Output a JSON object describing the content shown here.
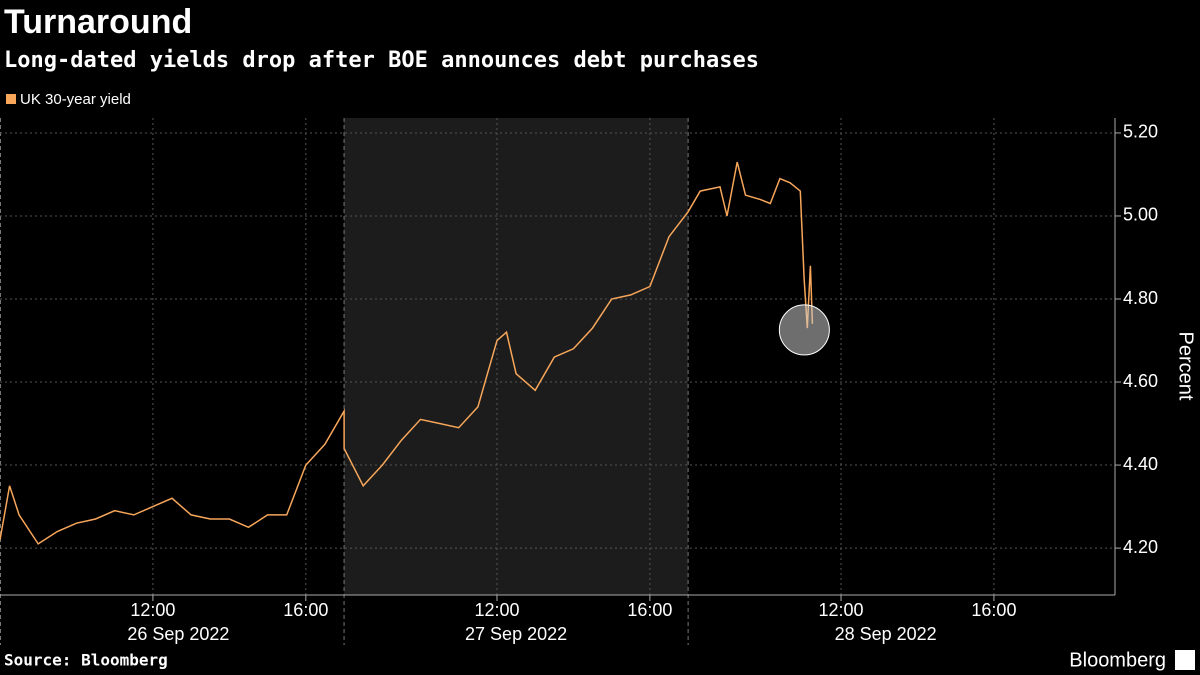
{
  "chart_data": {
    "type": "line",
    "title": "Turnaround",
    "subtitle": "Long-dated yields drop after BOE announces debt purchases",
    "y_label": "Percent",
    "source": "Source: Bloomberg",
    "brand": "Bloomberg",
    "grid": true,
    "legend": "top-left",
    "x": [
      "2022-09-26T08:00",
      "2022-09-26T08:15",
      "2022-09-26T08:30",
      "2022-09-26T09:00",
      "2022-09-26T09:30",
      "2022-09-26T10:00",
      "2022-09-26T10:30",
      "2022-09-26T11:00",
      "2022-09-26T11:30",
      "2022-09-26T12:00",
      "2022-09-26T12:30",
      "2022-09-26T13:00",
      "2022-09-26T13:30",
      "2022-09-26T14:00",
      "2022-09-26T14:30",
      "2022-09-26T15:00",
      "2022-09-26T15:30",
      "2022-09-26T16:00",
      "2022-09-26T16:30",
      "2022-09-26T17:00",
      "2022-09-27T08:00",
      "2022-09-27T08:30",
      "2022-09-27T09:00",
      "2022-09-27T09:30",
      "2022-09-27T10:00",
      "2022-09-27T10:30",
      "2022-09-27T11:00",
      "2022-09-27T11:30",
      "2022-09-27T12:00",
      "2022-09-27T12:15",
      "2022-09-27T12:30",
      "2022-09-27T13:00",
      "2022-09-27T13:30",
      "2022-09-27T14:00",
      "2022-09-27T14:30",
      "2022-09-27T15:00",
      "2022-09-27T15:30",
      "2022-09-27T16:00",
      "2022-09-27T16:30",
      "2022-09-27T17:00",
      "2022-09-28T08:19",
      "2022-09-28T08:50",
      "2022-09-28T09:01",
      "2022-09-28T09:17",
      "2022-09-28T09:30",
      "2022-09-28T09:53",
      "2022-09-28T10:09",
      "2022-09-28T10:24",
      "2022-09-28T10:40",
      "2022-09-28T10:56",
      "2022-09-28T11:02",
      "2022-09-28T11:07",
      "2022-09-28T11:12",
      "2022-09-28T11:15"
    ],
    "series": [
      {
        "name": "UK 30-year yield",
        "color": "#f7a65a",
        "values": [
          4.22,
          4.35,
          4.28,
          4.21,
          4.24,
          4.26,
          4.27,
          4.29,
          4.28,
          4.3,
          4.32,
          4.28,
          4.27,
          4.27,
          4.25,
          4.28,
          4.28,
          4.4,
          4.45,
          4.53,
          4.44,
          4.35,
          4.4,
          4.46,
          4.51,
          4.5,
          4.49,
          4.54,
          4.7,
          4.72,
          4.62,
          4.58,
          4.66,
          4.68,
          4.73,
          4.8,
          4.81,
          4.83,
          4.95,
          5.01,
          5.06,
          5.07,
          5.0,
          5.13,
          5.05,
          5.04,
          5.03,
          5.09,
          5.08,
          5.06,
          4.85,
          4.73,
          4.88,
          4.74
        ]
      }
    ],
    "xlim": [
      "2022-09-26T08:00",
      "2022-09-28T19:10"
    ],
    "xticks": [
      {
        "value": "2022-09-26T12:00",
        "label": "12:00"
      },
      {
        "value": "2022-09-26T16:00",
        "label": "16:00"
      },
      {
        "value": "2022-09-27T12:00",
        "label": "12:00"
      },
      {
        "value": "2022-09-27T16:00",
        "label": "16:00"
      },
      {
        "value": "2022-09-28T12:00",
        "label": "12:00"
      },
      {
        "value": "2022-09-28T16:00",
        "label": "16:00"
      }
    ],
    "date_labels": [
      {
        "value": "2022-09-26T12:40",
        "label": "26 Sep 2022"
      },
      {
        "value": "2022-09-27T12:30",
        "label": "27 Sep 2022"
      },
      {
        "value": "2022-09-28T13:10",
        "label": "28 Sep 2022"
      }
    ],
    "ylim": [
      4.087,
      5.236
    ],
    "yticks": [
      {
        "value": 4.2,
        "label": "4.20"
      },
      {
        "value": 4.4,
        "label": "4.40"
      },
      {
        "value": 4.6,
        "label": "4.60"
      },
      {
        "value": 4.8,
        "label": "4.80"
      },
      {
        "value": 5.0,
        "label": "5.00"
      },
      {
        "value": 5.2,
        "label": "5.20"
      }
    ]
  }
}
